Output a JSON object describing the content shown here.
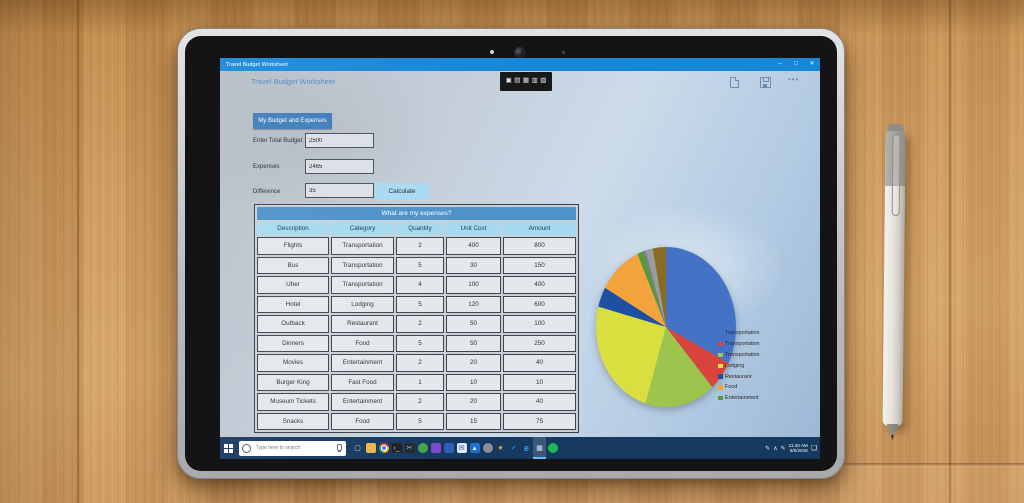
{
  "colors": {
    "titlebar": "#1787d8",
    "taskbar": "#16395f",
    "accent": "#3d7cba",
    "calc_button": "#a9daf2",
    "table_title": "#4d92c8",
    "table_header": "#a6daee",
    "app_header_text": "#4d8bc8"
  },
  "window": {
    "title": "Travel Budget Worksheet",
    "minimize": "–",
    "maximize": "□",
    "close": "✕"
  },
  "app": {
    "header": "Travel Budget Worksheet",
    "float_toolbar_icons": [
      {
        "name": "capture-toolbar-icon-1",
        "glyph": "▣"
      },
      {
        "name": "capture-toolbar-icon-2",
        "glyph": "▤"
      },
      {
        "name": "capture-toolbar-icon-3",
        "glyph": "▦"
      },
      {
        "name": "capture-toolbar-icon-4",
        "glyph": "▥"
      },
      {
        "name": "capture-toolbar-icon-5",
        "glyph": "▧"
      }
    ],
    "more_label": "•••",
    "section_button": "My Budget and Expenses",
    "form": {
      "fields": [
        {
          "label": "Enter Total Budget",
          "value": "2500"
        },
        {
          "label": "Expenses",
          "value": "2465"
        },
        {
          "label": "Difference",
          "value": "35"
        }
      ],
      "calculate_label": "Calculate"
    },
    "table": {
      "title": "What are my expenses?",
      "columns": [
        "Description",
        "Category",
        "Quantity",
        "Unit Cost",
        "Amount"
      ],
      "rows": [
        [
          "Flights",
          "Transportation",
          "2",
          "400",
          "800"
        ],
        [
          "Bus",
          "Transportation",
          "5",
          "30",
          "150"
        ],
        [
          "Uber",
          "Transportation",
          "4",
          "100",
          "400"
        ],
        [
          "Hotel",
          "Lodging",
          "5",
          "120",
          "600"
        ],
        [
          "Outback",
          "Restaurant",
          "2",
          "50",
          "100"
        ],
        [
          "Dinners",
          "Food",
          "5",
          "50",
          "250"
        ],
        [
          "Movies",
          "Entertainment",
          "2",
          "20",
          "40"
        ],
        [
          "Burger King",
          "Fast Food",
          "1",
          "10",
          "10"
        ],
        [
          "Museum Tickets",
          "Entertainment",
          "2",
          "20",
          "40"
        ],
        [
          "Snacks",
          "Food",
          "5",
          "15",
          "75"
        ]
      ]
    }
  },
  "chart_data": {
    "type": "pie",
    "labels": [
      "Flights",
      "Bus",
      "Uber",
      "Hotel",
      "Outback",
      "Dinners",
      "Movies",
      "Burger King",
      "Museum Tickets",
      "Snacks"
    ],
    "categories": [
      "Transportation",
      "Transportation",
      "Transportation",
      "Lodging",
      "Restaurant",
      "Food",
      "Entertainment",
      "Fast Food",
      "Entertainment",
      "Food"
    ],
    "values": [
      800,
      150,
      400,
      600,
      100,
      250,
      40,
      10,
      40,
      75
    ],
    "colors": [
      "#4472c4",
      "#d8433b",
      "#9dc44d",
      "#dade3f",
      "#1f4fa0",
      "#f2a33c",
      "#58973b",
      "#8a6fb8",
      "#9b9b9b",
      "#8a6b24"
    ],
    "legend_entries": [
      "Transportation",
      "Transportation",
      "Transportation",
      "Lodging",
      "Restaurant",
      "Food",
      "Entertainment"
    ],
    "legend_position": "right",
    "total": 2465
  },
  "taskbar": {
    "search_placeholder": "Type here to search",
    "icons": [
      {
        "name": "task-view-icon",
        "glyph": "▢",
        "fg": "#cfd6dd",
        "bg": "none"
      },
      {
        "name": "file-explorer-icon",
        "glyph": "",
        "fg": "#fff",
        "bg": "#e9b64f"
      },
      {
        "name": "chrome-icon",
        "glyph": "",
        "fg": "",
        "bg": "chrome"
      },
      {
        "name": "terminal-icon",
        "glyph": "›_",
        "fg": "#cccccc",
        "bg": "#1f1f1f"
      },
      {
        "name": "snipping-tool-icon",
        "glyph": "✂",
        "fg": "#b9c2cc",
        "bg": "#24272c"
      },
      {
        "name": "green-app-icon",
        "glyph": "",
        "fg": "#fff",
        "bg": "#47a647",
        "round": true
      },
      {
        "name": "visual-studio-purple-icon",
        "glyph": "",
        "fg": "#fff",
        "bg": "#7b4bc8"
      },
      {
        "name": "visual-studio-blue-icon",
        "glyph": "",
        "fg": "#fff",
        "bg": "#2b5fb8"
      },
      {
        "name": "mail-icon",
        "glyph": "✉",
        "fg": "#2b5fb8",
        "bg": "#dde6f5"
      },
      {
        "name": "photos-app-icon",
        "glyph": "▴",
        "fg": "#ffffff",
        "bg": "#1e6fd0"
      },
      {
        "name": "gray-orb-icon",
        "glyph": "",
        "fg": "",
        "bg": "#8a8f96",
        "round": true
      },
      {
        "name": "star-icon",
        "glyph": "★",
        "fg": "#e8a33d",
        "bg": "none"
      },
      {
        "name": "checkmark-app-icon",
        "glyph": "✔",
        "fg": "#2f7fe0",
        "bg": "none"
      },
      {
        "name": "edge-icon",
        "glyph": "e",
        "fg": "#35a3e8",
        "bg": "none",
        "bold": true
      },
      {
        "name": "travel-budget-app-icon",
        "glyph": "▦",
        "fg": "#d6e6f5",
        "bg": "none",
        "active": true
      },
      {
        "name": "green-circle-app-icon",
        "glyph": "",
        "fg": "",
        "bg": "#1db954",
        "round": true
      }
    ],
    "tray_icons": [
      {
        "name": "pen-tray-icon",
        "glyph": "✎"
      },
      {
        "name": "chevron-up-icon",
        "glyph": "∧"
      },
      {
        "name": "stylus-settings-icon",
        "glyph": "✎"
      }
    ],
    "clock": {
      "time": "11:40 AM",
      "date": "6/5/2018"
    },
    "action_center_icon": "❏"
  }
}
